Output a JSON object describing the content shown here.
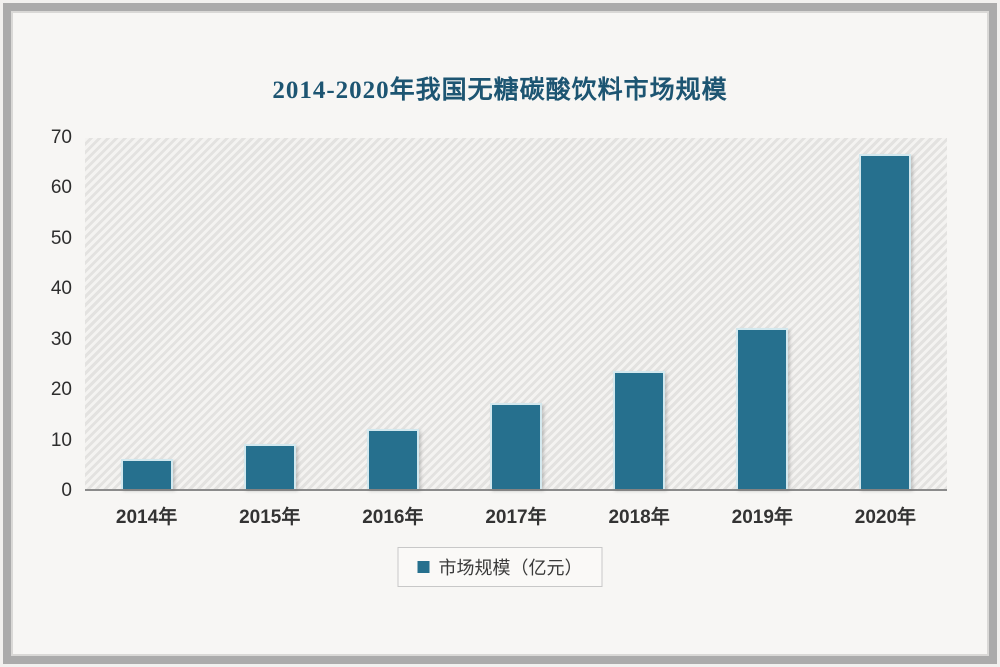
{
  "chart_data": {
    "type": "bar",
    "title": "2014-2020年我国无糖碳酸饮料市场规模",
    "categories": [
      "2014年",
      "2015年",
      "2016年",
      "2017年",
      "2018年",
      "2019年",
      "2020年"
    ],
    "values": [
      6,
      9,
      12,
      17,
      23.5,
      32,
      66.5
    ],
    "series_name": "市场规模（亿元）",
    "legend_label": "市场规模（亿元）",
    "xlabel": "",
    "ylabel": "",
    "ylim": [
      0,
      70
    ],
    "yticks": [
      0,
      10,
      20,
      30,
      40,
      50,
      60,
      70
    ],
    "grid": false,
    "legend_position": "bottom-center",
    "plot_background": "diagonal-hatch"
  },
  "colors": {
    "bar": "#26708e",
    "bar_edge": "#d3e8ee",
    "title": "#1d5572",
    "axis_text": "#2d2d2d",
    "axis_line": "#8b8b8b"
  }
}
